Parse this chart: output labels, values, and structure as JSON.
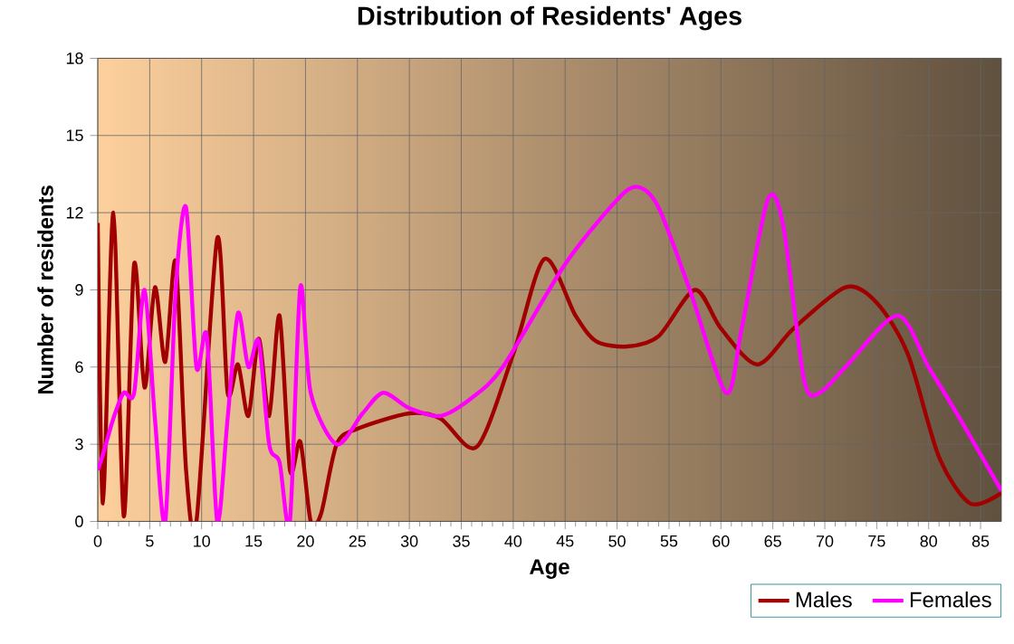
{
  "chart_data": {
    "type": "line",
    "title": "Distribution of Residents' Ages",
    "xlabel": "Age",
    "ylabel": "Number of residents",
    "xlim": [
      0,
      87
    ],
    "ylim": [
      0,
      18
    ],
    "xticks": [
      0,
      5,
      10,
      15,
      20,
      25,
      30,
      35,
      40,
      45,
      50,
      55,
      60,
      65,
      70,
      75,
      80,
      85
    ],
    "yticks": [
      0,
      3,
      6,
      9,
      12,
      15,
      18
    ],
    "grid": true,
    "legend": "bottom right",
    "series": [
      {
        "name": "Males",
        "color": "#a00000",
        "x": [
          0,
          0.5,
          1.5,
          2.5,
          3.5,
          4.5,
          5.5,
          6.5,
          7.5,
          8.5,
          9.5,
          11.5,
          12.5,
          13.5,
          14.5,
          15.5,
          16.5,
          17.5,
          18.5,
          19.5,
          20.5,
          21.5,
          23,
          25,
          30,
          33,
          36.5,
          40,
          43,
          46,
          48,
          51,
          54,
          57.5,
          60,
          63.5,
          67,
          72,
          75,
          78,
          81,
          84,
          87
        ],
        "values": [
          11.6,
          0.7,
          12,
          0.2,
          10,
          5.2,
          9.1,
          6.2,
          10.1,
          2,
          0,
          11,
          5,
          6.1,
          4.1,
          7.1,
          4.1,
          8,
          2,
          3.1,
          0,
          0.3,
          3,
          3.6,
          4.2,
          4,
          2.9,
          6.5,
          10.2,
          8,
          7,
          6.8,
          7.2,
          9,
          7.5,
          6.1,
          7.5,
          9.1,
          8.5,
          6.5,
          2.5,
          0.7,
          1.1
        ]
      },
      {
        "name": "Females",
        "color": "#ff00ff",
        "x": [
          0,
          0.5,
          1.5,
          2.5,
          3.5,
          4.5,
          5.5,
          6.5,
          7.5,
          8.5,
          9.5,
          10.5,
          11.5,
          12.5,
          13.5,
          14.5,
          15.5,
          16.5,
          17.5,
          18.5,
          19.5,
          20.5,
          23,
          25.5,
          27.5,
          30,
          33,
          36,
          39,
          45,
          50,
          52,
          54,
          57,
          60.5,
          62,
          64.5,
          66,
          68,
          69.5,
          72,
          77,
          80,
          83,
          87
        ],
        "values": [
          2,
          2.6,
          4,
          5,
          5,
          9,
          4,
          0,
          9,
          12.2,
          6,
          7.2,
          0,
          4,
          8.1,
          6,
          7,
          3,
          2.3,
          0,
          9.1,
          5,
          3,
          4.2,
          5,
          4.4,
          4.1,
          4.8,
          6,
          10,
          12.5,
          13,
          12.2,
          9,
          5,
          7.5,
          12.5,
          11.5,
          5.5,
          5,
          6,
          8,
          6,
          4,
          1.2
        ]
      }
    ]
  }
}
